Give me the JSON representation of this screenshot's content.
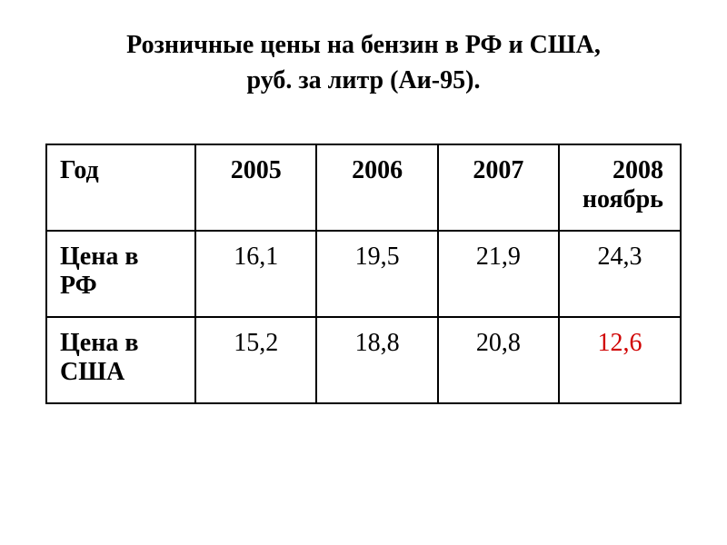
{
  "title_line1": "Розничные цены на бензин в РФ и США,",
  "title_line2": "руб. за литр (Аи-95).",
  "table": {
    "columns": [
      "Год",
      "2005",
      "2006",
      "2007",
      "2008 ноябрь"
    ],
    "rows": [
      {
        "header": "Цена в РФ",
        "cells": [
          "16,1",
          "19,5",
          "21,9",
          "24,3"
        ],
        "highlight_index": -1
      },
      {
        "header": "Цена в США",
        "cells": [
          "15,2",
          "18,8",
          "20,8",
          "12,6"
        ],
        "highlight_index": 3
      }
    ],
    "border_color": "#000000",
    "text_color": "#000000",
    "highlight_color": "#d00000",
    "background_color": "#ffffff",
    "font_size": 28,
    "title_font_size": 28
  }
}
